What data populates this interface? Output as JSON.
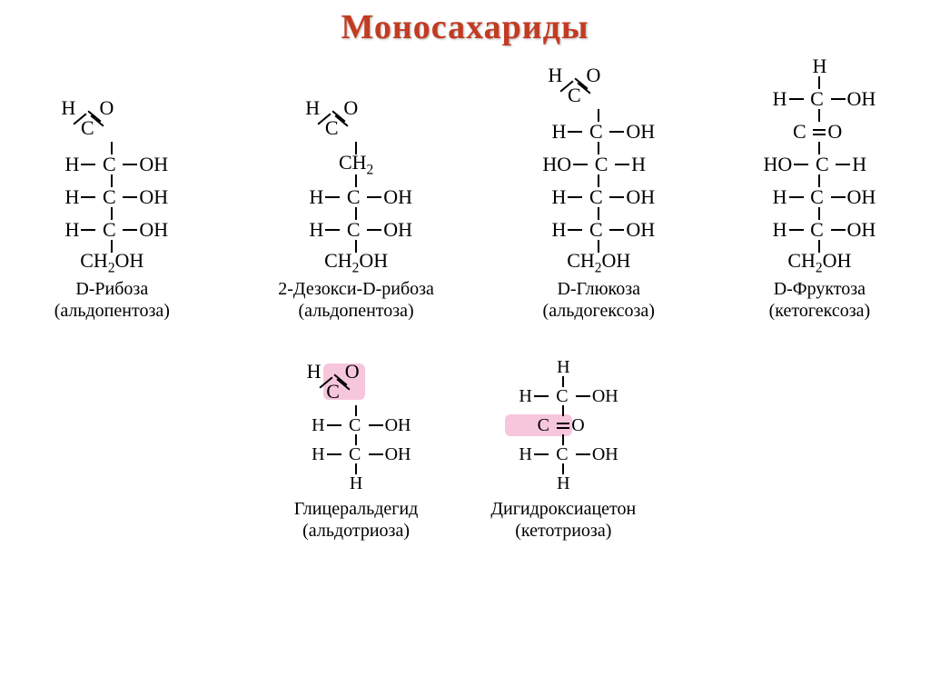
{
  "title": "Моносахариды",
  "colors": {
    "title": "#c23b22",
    "highlight": "#f6c6dc",
    "text": "#000000",
    "background": "#ffffff"
  },
  "fonts": {
    "title_size": 38,
    "formula_size": 22,
    "label_size": 20
  },
  "molecules_top": [
    {
      "name": "D-Рибоза",
      "subtype": "(альдопентоза)",
      "rows": [
        {
          "type": "aldehyde"
        },
        {
          "type": "choh",
          "left": "H",
          "right": "OH"
        },
        {
          "type": "choh",
          "left": "H",
          "right": "OH"
        },
        {
          "type": "choh",
          "left": "H",
          "right": "OH"
        },
        {
          "type": "ch2oh"
        }
      ]
    },
    {
      "name": "2-Дезокси-D-рибоза",
      "subtype": "(альдопентоза)",
      "rows": [
        {
          "type": "aldehyde"
        },
        {
          "type": "ch2"
        },
        {
          "type": "choh",
          "left": "H",
          "right": "OH"
        },
        {
          "type": "choh",
          "left": "H",
          "right": "OH"
        },
        {
          "type": "ch2oh"
        }
      ]
    },
    {
      "name": "D-Глюкоза",
      "subtype": "(альдогексоза)",
      "rows": [
        {
          "type": "aldehyde"
        },
        {
          "type": "choh",
          "left": "H",
          "right": "OH"
        },
        {
          "type": "choh",
          "left": "HO",
          "right": "H"
        },
        {
          "type": "choh",
          "left": "H",
          "right": "OH"
        },
        {
          "type": "choh",
          "left": "H",
          "right": "OH"
        },
        {
          "type": "ch2oh"
        }
      ]
    },
    {
      "name": "D-Фруктоза",
      "subtype": "(кетогексоза)",
      "rows": [
        {
          "type": "h_top"
        },
        {
          "type": "choh",
          "left": "H",
          "right": "OH"
        },
        {
          "type": "ketone"
        },
        {
          "type": "choh",
          "left": "HO",
          "right": "H"
        },
        {
          "type": "choh",
          "left": "H",
          "right": "OH"
        },
        {
          "type": "choh",
          "left": "H",
          "right": "OH"
        },
        {
          "type": "ch2oh"
        }
      ]
    }
  ],
  "molecules_bottom": [
    {
      "name": "Глицеральдегид",
      "subtype": "(альдотриоза)",
      "highlight": "aldehyde",
      "rows": [
        {
          "type": "aldehyde",
          "highlight": true
        },
        {
          "type": "choh",
          "left": "H",
          "right": "OH"
        },
        {
          "type": "choh",
          "left": "H",
          "right": "OH"
        },
        {
          "type": "h_bottom"
        }
      ]
    },
    {
      "name": "Дигидроксиацетон",
      "subtype": "(кетотриоза)",
      "highlight": "ketone",
      "rows": [
        {
          "type": "h_top"
        },
        {
          "type": "choh",
          "left": "H",
          "right": "OH"
        },
        {
          "type": "ketone",
          "highlight": true
        },
        {
          "type": "choh",
          "left": "H",
          "right": "OH"
        },
        {
          "type": "h_bottom"
        }
      ]
    }
  ]
}
